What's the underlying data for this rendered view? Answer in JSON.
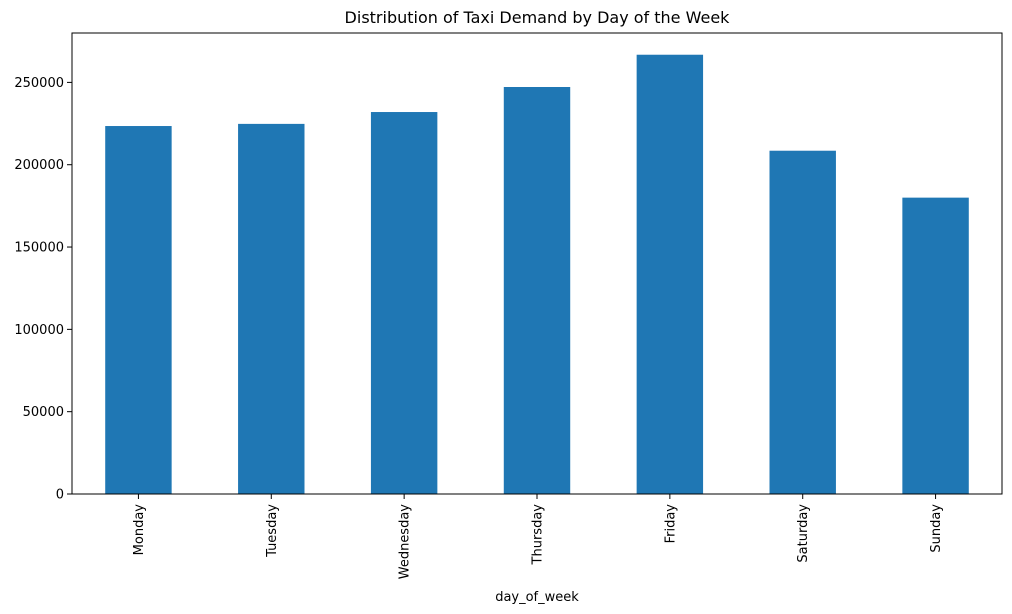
{
  "chart_data": {
    "type": "bar",
    "title": "Distribution of Taxi Demand by Day of the Week",
    "xlabel": "day_of_week",
    "ylabel": "",
    "categories": [
      "Monday",
      "Tuesday",
      "Wednesday",
      "Thursday",
      "Friday",
      "Saturday",
      "Sunday"
    ],
    "values": [
      223500,
      224800,
      232000,
      247200,
      266800,
      208500,
      180000
    ],
    "ylim": [
      0,
      280000
    ],
    "yticks": [
      0,
      50000,
      100000,
      150000,
      200000,
      250000
    ],
    "ytick_labels": [
      "0",
      "50000",
      "100000",
      "150000",
      "200000",
      "250000"
    ],
    "grid": false,
    "legend": "none",
    "bar_color": "#1f77b4"
  }
}
